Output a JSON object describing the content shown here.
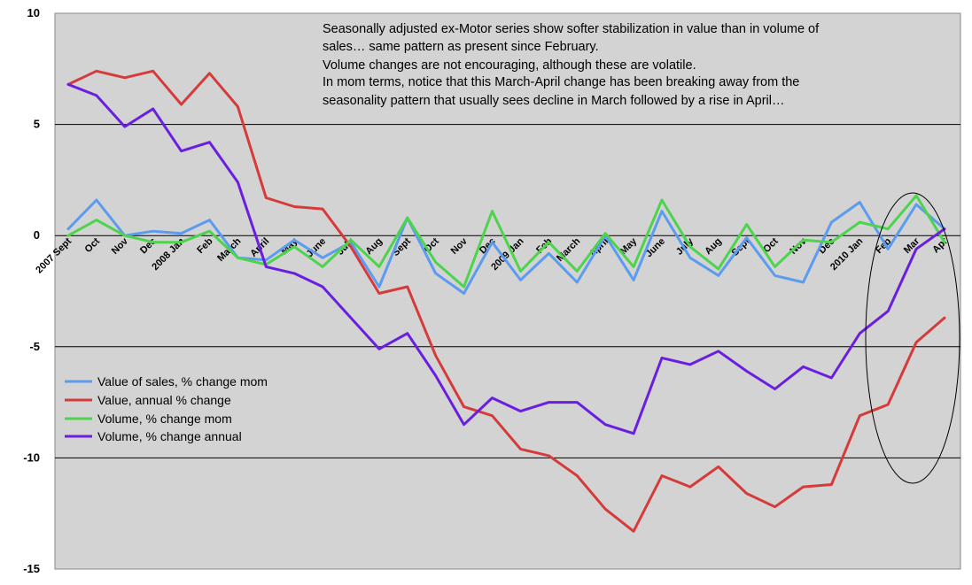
{
  "chart_data": {
    "type": "line",
    "title": "",
    "xlabel": "",
    "ylabel": "",
    "ylim": [
      -15,
      10
    ],
    "yticks": [
      10,
      5,
      0,
      -5,
      -10,
      -15
    ],
    "grid": true,
    "legend_position": "left-middle",
    "categories": [
      "2007 Sept",
      "Oct",
      "Nov",
      "Dec",
      "2008 Jan",
      "Feb",
      "March",
      "April",
      "May",
      "June",
      "July",
      "Aug",
      "Sept",
      "Oct",
      "Nov",
      "Dec",
      "2009 Jan",
      "Feb",
      "March",
      "April",
      "May",
      "June",
      "July",
      "Aug",
      "Sept",
      "Oct",
      "Nov",
      "Dec",
      "2010 Jan",
      "Feb",
      "Mar",
      "Apr"
    ],
    "series": [
      {
        "name": "Value of sales, % change mom",
        "color": "#5b9bf0",
        "values": [
          0.3,
          1.6,
          0.0,
          0.2,
          0.1,
          0.7,
          -1.0,
          -1.1,
          -0.2,
          -1.0,
          -0.3,
          -2.3,
          0.8,
          -1.7,
          -2.6,
          -0.3,
          -2.0,
          -0.8,
          -2.1,
          0.0,
          -2.0,
          1.1,
          -1.0,
          -1.8,
          -0.1,
          -1.8,
          -2.1,
          0.6,
          1.5,
          -0.6,
          1.4,
          0.3
        ]
      },
      {
        "name": "Value, annual % change",
        "color": "#d63b3b",
        "values": [
          6.8,
          7.4,
          7.1,
          7.4,
          5.9,
          7.3,
          5.8,
          1.7,
          1.3,
          1.2,
          -0.5,
          -2.6,
          -2.3,
          -5.4,
          -7.7,
          -8.1,
          -9.6,
          -9.9,
          -10.8,
          -12.3,
          -13.3,
          -10.8,
          -11.3,
          -10.4,
          -11.6,
          -12.2,
          -11.3,
          -11.2,
          -8.1,
          -7.6,
          -4.8,
          -3.7
        ]
      },
      {
        "name": "Volume, % change mom",
        "color": "#4cd44c",
        "values": [
          0.0,
          0.7,
          0.0,
          -0.3,
          -0.3,
          0.2,
          -1.0,
          -1.3,
          -0.5,
          -1.4,
          -0.2,
          -1.4,
          0.8,
          -1.2,
          -2.3,
          1.1,
          -1.6,
          -0.3,
          -1.6,
          0.1,
          -1.4,
          1.6,
          -0.5,
          -1.5,
          0.5,
          -1.4,
          -0.2,
          -0.3,
          0.6,
          0.3,
          1.8,
          -0.3
        ]
      },
      {
        "name": "Volume, % change annual",
        "color": "#6a1fe0",
        "values": [
          6.8,
          6.3,
          4.9,
          5.7,
          3.8,
          4.2,
          2.4,
          -1.4,
          -1.7,
          -2.3,
          -3.7,
          -5.1,
          -4.4,
          -6.3,
          -8.5,
          -7.3,
          -7.9,
          -7.5,
          -7.5,
          -8.5,
          -8.9,
          -5.5,
          -5.8,
          -5.2,
          -6.1,
          -6.9,
          -5.9,
          -6.4,
          -4.4,
          -3.4,
          -0.6,
          0.3
        ]
      }
    ],
    "annotation_lines": [
      "Seasonally adjusted ex-Motor series show softer stabilization in value than in volume of",
      "sales… same pattern as present since February.",
      "Volume changes are not encouraging, although these are volatile.",
      "In mom terms, notice that this March-April change has been breaking away from the",
      "seasonality pattern that usually sees decline in March followed by a rise in April…"
    ],
    "highlight": "ellipse around Feb-Apr 2010"
  }
}
